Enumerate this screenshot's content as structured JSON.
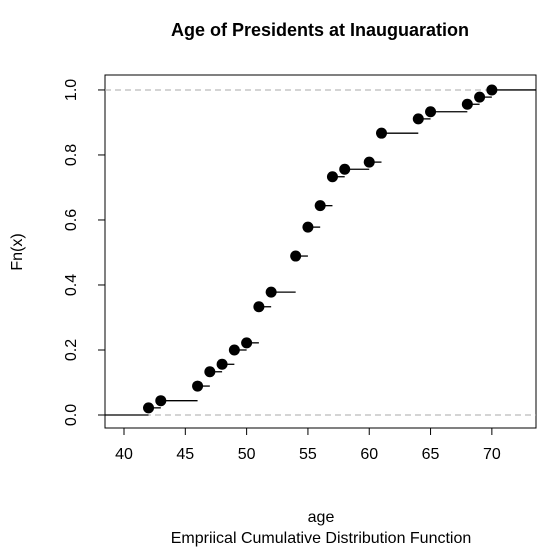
{
  "chart_data": {
    "type": "step",
    "title": "Age of Presidents at Inauguaration",
    "x_label": "age",
    "y_label": "Fn(x)",
    "subtitle": "Empriical Cumulative Distribution Function",
    "x": [
      42,
      43,
      46,
      47,
      48,
      49,
      50,
      51,
      52,
      54,
      55,
      56,
      57,
      58,
      60,
      61,
      64,
      65,
      68,
      69,
      70
    ],
    "values": [
      0.022,
      0.044,
      0.089,
      0.133,
      0.156,
      0.2,
      0.222,
      0.333,
      0.378,
      0.489,
      0.578,
      0.644,
      0.733,
      0.756,
      0.778,
      0.867,
      0.911,
      0.933,
      0.956,
      0.978,
      1.0
    ],
    "color": "#000000",
    "xlim": [
      38.45,
      73.6
    ],
    "ylim": [
      -0.04,
      1.046
    ],
    "xticks": [
      40,
      45,
      50,
      55,
      60,
      65,
      70
    ],
    "yticks": [
      {
        "value": 0,
        "label": "0.0"
      },
      0.2,
      0.4,
      0.6,
      0.8,
      {
        "value": 1,
        "label": "1.0"
      }
    ],
    "reference_lines": [
      0,
      1
    ]
  }
}
